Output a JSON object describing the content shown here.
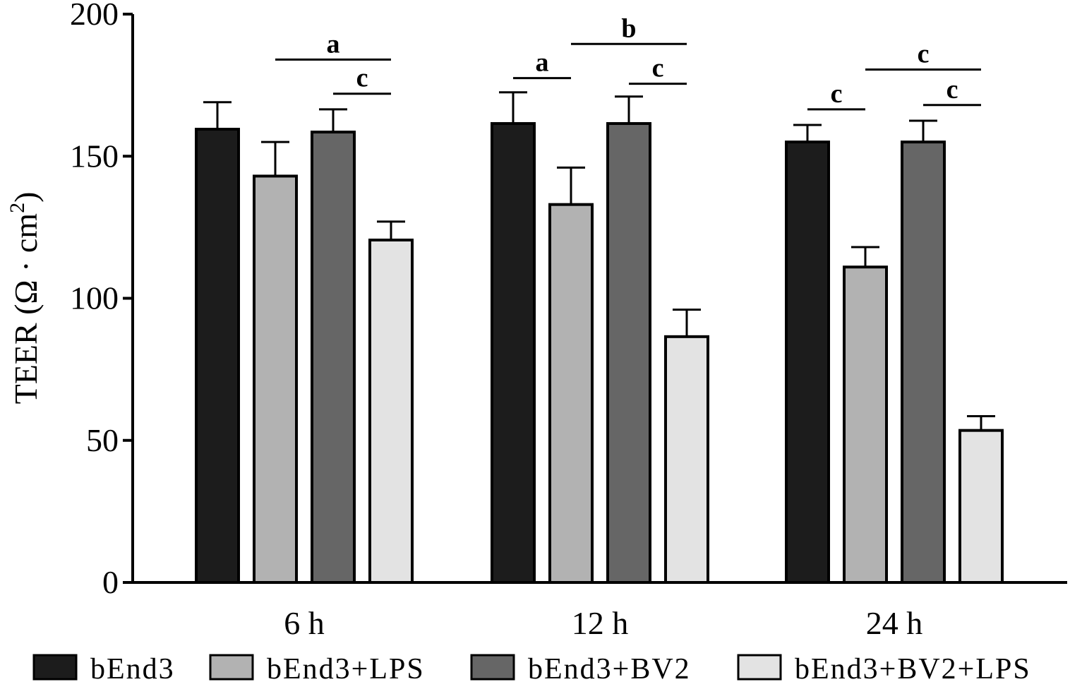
{
  "chart_data": {
    "type": "bar",
    "title": "",
    "xlabel": "",
    "ylabel": "TEER (Ω · cm 2)",
    "ylabel_parts": {
      "main": "TEER (Ω · cm",
      "superscript": "2",
      "close": ")"
    },
    "ylim": [
      0,
      200
    ],
    "yticks": [
      0,
      50,
      100,
      150,
      200
    ],
    "grid": false,
    "legend_position": "bottom",
    "categories": [
      "6 h",
      "12 h",
      "24 h"
    ],
    "series": [
      {
        "name": "bEnd3",
        "color": "#1c1c1c",
        "values": [
          159.5,
          161.5,
          155
        ],
        "errors": [
          9.5,
          11,
          6
        ]
      },
      {
        "name": "bEnd3+LPS",
        "color": "#b2b2b2",
        "values": [
          143,
          133,
          111
        ],
        "errors": [
          12,
          13,
          7
        ]
      },
      {
        "name": "bEnd3+BV2",
        "color": "#666666",
        "values": [
          158.5,
          161.5,
          155
        ],
        "errors": [
          8,
          9.5,
          7.5
        ]
      },
      {
        "name": "bEnd3+BV2+LPS",
        "color": "#e3e3e3",
        "values": [
          120.5,
          86.5,
          53.5
        ],
        "errors": [
          6.5,
          9.5,
          5
        ]
      }
    ],
    "significance": [
      {
        "category": 0,
        "from": 1,
        "to": 3,
        "y": 184,
        "label": "a"
      },
      {
        "category": 0,
        "from": 2,
        "to": 3,
        "y": 172,
        "label": "c"
      },
      {
        "category": 1,
        "from": 0,
        "to": 1,
        "y": 177.5,
        "label": "a"
      },
      {
        "category": 1,
        "from": 1,
        "to": 3,
        "y": 189.5,
        "label": "b"
      },
      {
        "category": 1,
        "from": 2,
        "to": 3,
        "y": 175.5,
        "label": "c"
      },
      {
        "category": 2,
        "from": 0,
        "to": 1,
        "y": 166.5,
        "label": "c"
      },
      {
        "category": 2,
        "from": 1,
        "to": 3,
        "y": 180.5,
        "label": "c"
      },
      {
        "category": 2,
        "from": 2,
        "to": 3,
        "y": 168,
        "label": "c"
      }
    ]
  }
}
